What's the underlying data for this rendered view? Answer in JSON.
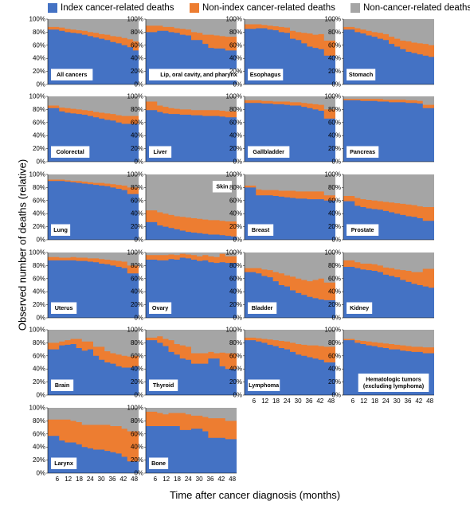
{
  "legend": [
    {
      "name": "Index cancer-related deaths",
      "color": "#4472c4"
    },
    {
      "name": "Non-index cancer-related deaths",
      "color": "#ed7d31"
    },
    {
      "name": "Non-cancer-related deaths",
      "color": "#a5a5a5"
    }
  ],
  "axis": {
    "ylabel": "Observed number of deaths (relative)",
    "xlabel": "Time after cancer diagnosis (months)",
    "yticks": [
      "0%",
      "20%",
      "40%",
      "60%",
      "80%",
      "100%"
    ],
    "xticks": [
      "6",
      "12",
      "18",
      "24",
      "30",
      "36",
      "42",
      "48"
    ]
  },
  "chart_data": {
    "type": "area",
    "stacking": "percent",
    "x": [
      3,
      6,
      9,
      12,
      15,
      18,
      21,
      24,
      27,
      30,
      33,
      36,
      39,
      42,
      45,
      48
    ],
    "ylim": [
      0,
      100
    ],
    "panels": [
      {
        "title": "All cancers",
        "index": [
          84,
          84,
          82,
          80,
          79,
          78,
          76,
          74,
          72,
          70,
          68,
          65,
          63,
          60,
          57,
          52
        ],
        "nonindex": [
          88,
          88,
          87,
          85,
          84,
          83,
          82,
          80,
          79,
          77,
          76,
          74,
          73,
          71,
          69,
          66
        ]
      },
      {
        "title": "Lip, oral cavity, and pharynx",
        "index": [
          80,
          80,
          82,
          82,
          80,
          79,
          76,
          75,
          68,
          68,
          62,
          56,
          55,
          55,
          52,
          52
        ],
        "nonindex": [
          90,
          90,
          90,
          88,
          88,
          86,
          85,
          84,
          80,
          79,
          76,
          76,
          75,
          74,
          73,
          73
        ]
      },
      {
        "title": "Esophagus",
        "index": [
          85,
          85,
          86,
          86,
          84,
          83,
          80,
          79,
          70,
          68,
          63,
          58,
          56,
          54,
          44,
          44
        ],
        "nonindex": [
          92,
          92,
          92,
          91,
          90,
          89,
          88,
          87,
          82,
          80,
          79,
          78,
          76,
          77,
          67,
          67
        ]
      },
      {
        "title": "Stomach",
        "index": [
          84,
          84,
          80,
          78,
          75,
          73,
          70,
          68,
          62,
          58,
          54,
          50,
          48,
          46,
          44,
          42
        ],
        "nonindex": [
          88,
          88,
          86,
          84,
          82,
          80,
          79,
          77,
          73,
          70,
          67,
          66,
          64,
          63,
          62,
          60
        ]
      },
      {
        "title": "Colorectal",
        "index": [
          82,
          82,
          77,
          75,
          74,
          73,
          72,
          70,
          68,
          66,
          64,
          63,
          60,
          58,
          58,
          58
        ],
        "nonindex": [
          86,
          86,
          83,
          82,
          81,
          80,
          79,
          78,
          76,
          75,
          74,
          73,
          71,
          70,
          70,
          70
        ]
      },
      {
        "title": "Liver",
        "index": [
          79,
          79,
          76,
          74,
          73,
          73,
          72,
          72,
          71,
          71,
          70,
          70,
          70,
          69,
          68,
          68
        ],
        "nonindex": [
          92,
          92,
          86,
          84,
          82,
          81,
          80,
          80,
          79,
          79,
          79,
          79,
          79,
          78,
          77,
          77
        ]
      },
      {
        "title": "Gallbladder",
        "index": [
          90,
          90,
          90,
          89,
          89,
          88,
          88,
          87,
          86,
          86,
          84,
          82,
          80,
          78,
          66,
          66
        ],
        "nonindex": [
          94,
          94,
          94,
          93,
          93,
          92,
          92,
          92,
          91,
          91,
          90,
          89,
          88,
          87,
          80,
          80
        ]
      },
      {
        "title": "Pancreas",
        "index": [
          94,
          94,
          94,
          93,
          93,
          93,
          92,
          92,
          91,
          91,
          91,
          90,
          90,
          89,
          82,
          82
        ],
        "nonindex": [
          96,
          96,
          96,
          96,
          96,
          96,
          96,
          95,
          95,
          95,
          95,
          94,
          94,
          93,
          87,
          87
        ]
      },
      {
        "title": "Lung",
        "index": [
          90,
          90,
          90,
          89,
          88,
          87,
          86,
          85,
          84,
          83,
          82,
          80,
          78,
          76,
          70,
          70
        ],
        "nonindex": [
          92,
          92,
          92,
          91,
          90,
          90,
          89,
          88,
          87,
          87,
          86,
          85,
          84,
          83,
          80,
          80
        ]
      },
      {
        "title": "Skin",
        "index": [
          27,
          27,
          22,
          20,
          18,
          16,
          14,
          12,
          11,
          10,
          9,
          8,
          8,
          7,
          6,
          5
        ],
        "nonindex": [
          45,
          45,
          42,
          40,
          38,
          36,
          35,
          34,
          33,
          32,
          31,
          30,
          30,
          29,
          28,
          28
        ]
      },
      {
        "title": "Breast",
        "index": [
          80,
          80,
          68,
          68,
          68,
          67,
          66,
          65,
          64,
          63,
          63,
          62,
          62,
          62,
          60,
          60
        ],
        "nonindex": [
          83,
          83,
          77,
          76,
          76,
          76,
          75,
          75,
          75,
          74,
          74,
          74,
          74,
          74,
          68,
          68
        ]
      },
      {
        "title": "Prostate",
        "index": [
          59,
          59,
          52,
          50,
          48,
          47,
          46,
          44,
          42,
          40,
          38,
          36,
          35,
          33,
          29,
          29
        ],
        "nonindex": [
          67,
          67,
          64,
          62,
          61,
          60,
          59,
          58,
          57,
          56,
          55,
          54,
          53,
          51,
          50,
          50
        ]
      },
      {
        "title": "Uterus",
        "index": [
          88,
          88,
          88,
          88,
          88,
          87,
          87,
          86,
          85,
          83,
          82,
          80,
          78,
          76,
          68,
          68
        ],
        "nonindex": [
          93,
          93,
          92,
          92,
          93,
          92,
          92,
          91,
          91,
          90,
          89,
          88,
          87,
          86,
          80,
          80
        ]
      },
      {
        "title": "Ovary",
        "index": [
          89,
          89,
          88,
          88,
          90,
          89,
          92,
          91,
          89,
          87,
          88,
          85,
          84,
          85,
          84,
          84
        ],
        "nonindex": [
          96,
          96,
          96,
          96,
          97,
          96,
          98,
          97,
          96,
          94,
          96,
          94,
          93,
          98,
          94,
          94
        ]
      },
      {
        "title": "Bladder",
        "index": [
          70,
          70,
          68,
          64,
          62,
          56,
          50,
          48,
          42,
          38,
          35,
          32,
          30,
          28,
          27,
          27
        ],
        "nonindex": [
          76,
          76,
          76,
          74,
          73,
          70,
          68,
          65,
          63,
          60,
          58,
          56,
          58,
          60,
          54,
          54
        ]
      },
      {
        "title": "Kidney",
        "index": [
          78,
          78,
          76,
          74,
          73,
          72,
          70,
          66,
          64,
          62,
          58,
          55,
          52,
          50,
          48,
          46
        ],
        "nonindex": [
          88,
          88,
          85,
          83,
          83,
          82,
          80,
          77,
          76,
          74,
          73,
          72,
          70,
          70,
          75,
          75
        ]
      },
      {
        "title": "Brain",
        "index": [
          70,
          70,
          76,
          77,
          78,
          72,
          68,
          70,
          60,
          54,
          50,
          48,
          44,
          42,
          42,
          44
        ],
        "nonindex": [
          80,
          80,
          82,
          84,
          86,
          86,
          82,
          82,
          74,
          74,
          67,
          64,
          62,
          60,
          59,
          60
        ]
      },
      {
        "title": "Thyroid",
        "index": [
          84,
          84,
          80,
          75,
          66,
          62,
          56,
          54,
          48,
          48,
          48,
          56,
          56,
          44,
          40,
          40
        ],
        "nonindex": [
          88,
          88,
          90,
          86,
          84,
          78,
          76,
          74,
          64,
          64,
          64,
          66,
          64,
          65,
          64,
          64
        ]
      },
      {
        "title": "Lymphoma",
        "index": [
          84,
          84,
          82,
          80,
          77,
          75,
          72,
          70,
          66,
          62,
          60,
          58,
          56,
          54,
          50,
          50
        ],
        "nonindex": [
          88,
          88,
          87,
          86,
          85,
          84,
          83,
          82,
          80,
          78,
          77,
          76,
          76,
          75,
          74,
          74
        ]
      },
      {
        "title": "Hematologic tumors\n(excluding lymphoma)",
        "index": [
          84,
          84,
          80,
          78,
          76,
          75,
          73,
          72,
          70,
          70,
          68,
          67,
          66,
          66,
          64,
          64
        ],
        "nonindex": [
          86,
          86,
          84,
          83,
          82,
          81,
          80,
          79,
          78,
          77,
          76,
          75,
          74,
          74,
          73,
          73
        ]
      },
      {
        "title": "Larynx",
        "index": [
          57,
          57,
          50,
          47,
          47,
          44,
          40,
          38,
          36,
          36,
          34,
          32,
          30,
          25,
          18,
          18
        ],
        "nonindex": [
          82,
          82,
          82,
          82,
          80,
          78,
          74,
          74,
          74,
          74,
          74,
          72,
          72,
          68,
          64,
          64
        ]
      },
      {
        "title": "Bone",
        "index": [
          72,
          72,
          72,
          72,
          72,
          72,
          66,
          66,
          68,
          68,
          64,
          54,
          54,
          54,
          52,
          52
        ],
        "nonindex": [
          94,
          94,
          92,
          90,
          92,
          92,
          92,
          90,
          88,
          88,
          86,
          84,
          84,
          84,
          80,
          80
        ]
      }
    ]
  }
}
